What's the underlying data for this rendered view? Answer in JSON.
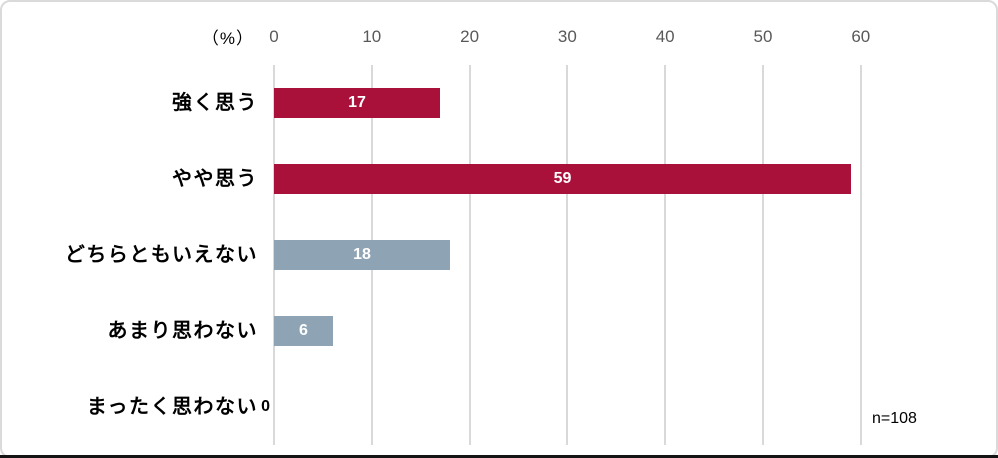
{
  "chart_data": {
    "type": "bar",
    "orientation": "horizontal",
    "title": "",
    "unit_label": "（%）",
    "categories": [
      "強く思う",
      "やや思う",
      "どちらともいえない",
      "あまり思わない",
      "まったく思わない"
    ],
    "values": [
      17,
      59,
      18,
      6,
      0
    ],
    "bar_colors": [
      "#A9113B",
      "#A9113B",
      "#8EA4B5",
      "#8EA4B5",
      "#8EA4B5"
    ],
    "x_ticks": [
      0,
      10,
      20,
      30,
      40,
      50,
      60
    ],
    "xlim": [
      0,
      60
    ],
    "xlabel": "",
    "ylabel": "",
    "grid": true,
    "legend": "none",
    "value_label_position": "inside-center",
    "annotation": "n=108",
    "colors": {
      "bar_strong_agree": "#A9113B",
      "bar_somewhat_agree": "#A9113B",
      "bar_neutral": "#8EA4B5",
      "bar_somewhat_disagree": "#8EA4B5",
      "gridline": "#D9D9D9",
      "tick_text": "#595959",
      "value_text": "#FFFFFF",
      "category_text": "#000000",
      "frame_border": "#DADADA",
      "bottom_line": "#141414"
    }
  }
}
